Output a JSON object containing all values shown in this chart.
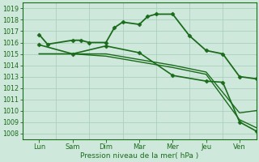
{
  "x_labels": [
    "Lun",
    "Sam",
    "Dim",
    "Mar",
    "Mer",
    "Jeu",
    "Ven"
  ],
  "x_tick_positions": [
    0.5,
    1.5,
    2.5,
    3.5,
    4.5,
    5.5,
    6.5
  ],
  "x_grid_positions": [
    0,
    1,
    2,
    3,
    4,
    5,
    6,
    7
  ],
  "xlim": [
    0,
    7
  ],
  "ylim": [
    1007.5,
    1019.5
  ],
  "yticks": [
    1008,
    1009,
    1010,
    1011,
    1012,
    1013,
    1014,
    1015,
    1016,
    1017,
    1018,
    1019
  ],
  "xlabel": "Pression niveau de la mer( hPa )",
  "bg_color": "#cfe8dc",
  "grid_color": "#aacfbe",
  "line_color": "#1a6b1a",
  "series": [
    {
      "x": [
        0.5,
        0.75,
        1.5,
        1.75,
        2.0,
        2.5,
        2.75,
        3.0,
        3.5,
        3.75,
        4.0,
        4.5,
        5.0,
        5.5,
        6.0,
        6.5,
        7.0
      ],
      "y": [
        1016.7,
        1015.85,
        1016.2,
        1016.2,
        1016.0,
        1016.0,
        1017.3,
        1017.8,
        1017.6,
        1018.3,
        1018.5,
        1018.5,
        1016.6,
        1015.3,
        1015.0,
        1013.0,
        1012.8
      ],
      "marker": "D",
      "ms": 2.5,
      "lw": 1.3
    },
    {
      "x": [
        0.5,
        1.5,
        2.5,
        3.5,
        4.5,
        5.5,
        6.0,
        6.5,
        7.0
      ],
      "y": [
        1015.8,
        1015.0,
        1015.7,
        1015.1,
        1013.1,
        1012.6,
        1012.5,
        1009.0,
        1008.2
      ],
      "marker": "D",
      "ms": 2.5,
      "lw": 1.2
    },
    {
      "x": [
        0.5,
        1.5,
        2.5,
        3.5,
        4.5,
        5.5,
        6.5,
        7.0
      ],
      "y": [
        1015.0,
        1015.0,
        1014.8,
        1014.3,
        1013.8,
        1013.2,
        1009.2,
        1008.5
      ],
      "marker": null,
      "ms": 0,
      "lw": 1.0
    },
    {
      "x": [
        0.5,
        1.5,
        2.5,
        3.5,
        4.5,
        5.5,
        6.5,
        7.0
      ],
      "y": [
        1015.0,
        1015.0,
        1015.0,
        1014.5,
        1014.0,
        1013.4,
        1009.8,
        1010.0
      ],
      "marker": null,
      "ms": 0,
      "lw": 1.0
    }
  ]
}
